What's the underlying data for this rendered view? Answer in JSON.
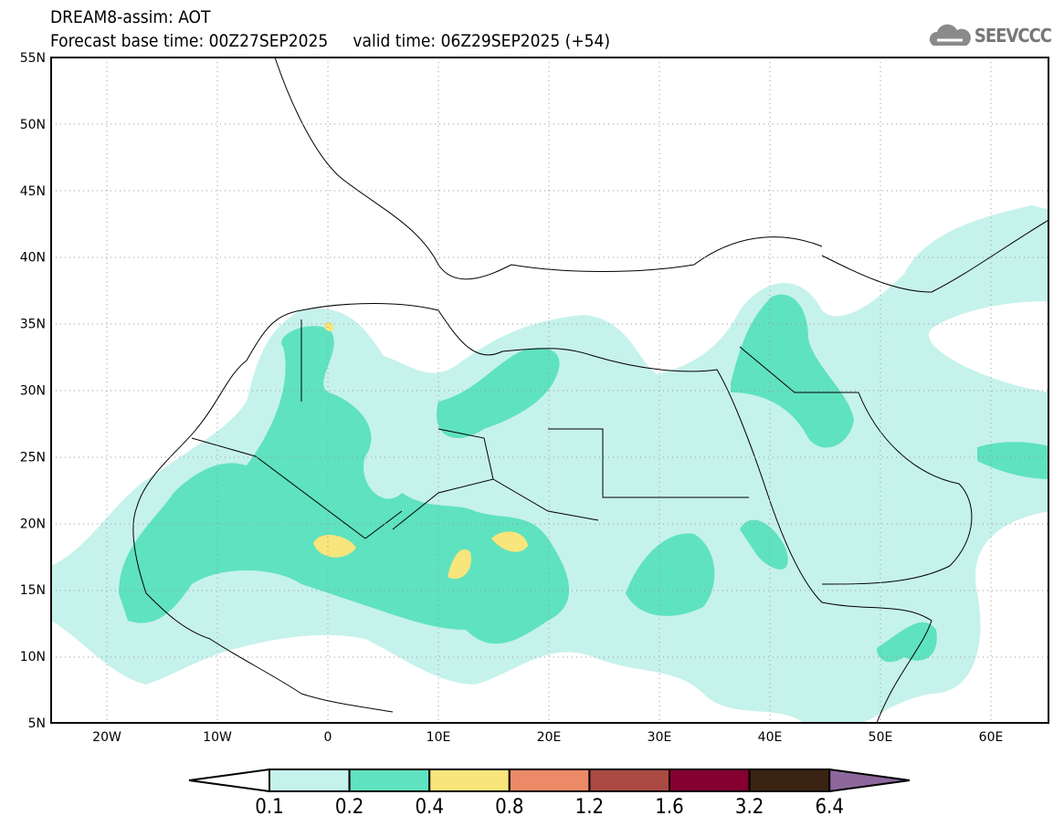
{
  "title": "DREAM8-assim: AOT",
  "subtitle": "Forecast base time: 00Z27SEP2025     valid time: 06Z29SEP2025 (+54)",
  "logo": "SEEVCCC",
  "lat_labels": [
    "55N",
    "50N",
    "45N",
    "40N",
    "35N",
    "30N",
    "25N",
    "20N",
    "15N",
    "10N",
    "5N"
  ],
  "lon_labels": [
    "20W",
    "10W",
    "0",
    "10E",
    "20E",
    "30E",
    "40E",
    "50E",
    "60E"
  ],
  "colorbar": {
    "levels": [
      "0.1",
      "0.2",
      "0.4",
      "0.8",
      "1.2",
      "1.6",
      "3.2",
      "6.4"
    ],
    "colors": [
      "#ffffff",
      "#c6f2ec",
      "#5fe2bf",
      "#f8e57c",
      "#ec8a68",
      "#aa4a42",
      "#850030",
      "#3a2312",
      "#8d679b"
    ]
  }
}
